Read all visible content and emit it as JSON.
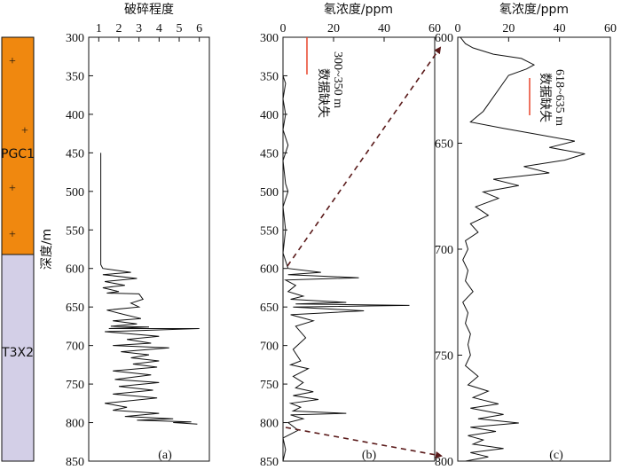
{
  "colors": {
    "granite": "#f0880f",
    "sediment": "#d3cfe7",
    "curve": "#111111",
    "gap_mark": "#e8442a",
    "arrow": "#5a1a1a"
  },
  "chart_data": [
    {
      "type": "column",
      "ylabel": "深度/m",
      "ylim": [
        300,
        850
      ],
      "units": [
        {
          "name": "PGC1",
          "top": 300,
          "bottom": 590,
          "color": "#f0880f",
          "symbol": "+",
          "symbol_depths": [
            330,
            420,
            495,
            555
          ]
        },
        {
          "name": "T3X2",
          "top": 590,
          "bottom": 850,
          "color": "#d3cfe7"
        }
      ]
    },
    {
      "type": "line",
      "panel": "(a)",
      "title": "破碎程度",
      "xlim": [
        0.5,
        6.5
      ],
      "ylim": [
        300,
        850
      ],
      "xticks": [
        1,
        2,
        3,
        4,
        5,
        6
      ],
      "yticks": [
        300,
        350,
        400,
        450,
        500,
        550,
        600,
        650,
        700,
        750,
        800,
        850
      ],
      "series": [
        {
          "name": "破碎程度",
          "x": [
            1.1,
            1.1,
            1.2,
            2.6,
            1.2,
            2.9,
            1.3,
            2.3,
            1.2,
            2.0,
            1.4,
            3.0,
            3.2,
            2.6,
            3.0,
            1.4,
            2.3,
            3.1,
            1.7,
            2.9,
            1.6,
            3.5,
            1.5,
            6.0,
            1.3,
            4.0,
            2.4,
            3.6,
            1.7,
            4.5,
            2.1,
            3.5,
            2.6,
            4.0,
            2.7,
            3.9,
            1.7,
            3.6,
            1.8,
            4.0,
            2.0,
            3.7,
            1.7,
            3.9,
            1.3,
            2.4,
            1.7,
            4.0,
            2.3,
            4.7,
            2.9,
            5.6,
            4.7,
            5.9
          ],
          "y": [
            450,
            595,
            600,
            605,
            608,
            613,
            617,
            622,
            625,
            630,
            632,
            633,
            640,
            645,
            650,
            654,
            660,
            665,
            668,
            672,
            675,
            676,
            678,
            678,
            682,
            688,
            692,
            697,
            700,
            703,
            708,
            712,
            716,
            720,
            724,
            728,
            733,
            738,
            744,
            748,
            753,
            758,
            763,
            768,
            775,
            780,
            784,
            788,
            792,
            795,
            797,
            799,
            800,
            802
          ]
        }
      ]
    },
    {
      "type": "line",
      "panel": "(b)",
      "title": "氡浓度/ppm",
      "xlim": [
        0,
        60
      ],
      "ylim": [
        300,
        850
      ],
      "xticks": [
        0,
        20,
        40,
        60
      ],
      "yticks": [
        300,
        350,
        400,
        450,
        500,
        550,
        600,
        650,
        700,
        750,
        800,
        850
      ],
      "annotations": [
        "数据缺失",
        "300~350 m"
      ],
      "series": [
        {
          "name": "氡浓度",
          "x": [
            0,
            1,
            0,
            1,
            0,
            2,
            0,
            1,
            2,
            0,
            1,
            0,
            2,
            15,
            2,
            30,
            1,
            5,
            2,
            8,
            3,
            25,
            5,
            50,
            4,
            32,
            3,
            12,
            5,
            9,
            4,
            7,
            3,
            10,
            4,
            8,
            5,
            12,
            4,
            14,
            3,
            7,
            4,
            25,
            3,
            8,
            2,
            6,
            0,
            1,
            0
          ],
          "y": [
            350,
            360,
            380,
            400,
            420,
            440,
            460,
            490,
            500,
            520,
            550,
            580,
            600,
            605,
            608,
            612,
            615,
            622,
            630,
            636,
            640,
            644,
            646,
            648,
            650,
            655,
            660,
            668,
            675,
            690,
            705,
            720,
            725,
            730,
            740,
            748,
            755,
            760,
            765,
            770,
            775,
            780,
            785,
            788,
            790,
            795,
            800,
            810,
            820,
            835,
            850
          ]
        }
      ]
    },
    {
      "type": "line",
      "panel": "(c)",
      "title": "氡浓度/ppm",
      "xlim": [
        0,
        60
      ],
      "ylim": [
        600,
        800
      ],
      "xticks": [
        0,
        20,
        40,
        60
      ],
      "yticks": [
        600,
        650,
        700,
        750,
        800
      ],
      "annotations": [
        "数据缺失",
        "618~635 m"
      ],
      "series": [
        {
          "name": "氡浓度",
          "x": [
            1,
            3,
            6,
            14,
            25,
            30,
            27,
            20,
            10,
            5,
            18,
            32,
            46,
            36,
            50,
            42,
            26,
            36,
            14,
            24,
            10,
            16,
            7,
            12,
            5,
            8,
            3,
            4,
            2,
            4,
            3,
            6,
            2,
            4,
            3,
            5,
            4,
            5,
            3,
            8,
            4,
            12,
            6,
            16,
            5,
            18,
            8,
            24,
            5,
            15,
            4,
            10,
            6,
            18,
            5,
            12,
            3
          ],
          "y": [
            600,
            603,
            605,
            608,
            610,
            613,
            615,
            618,
            635,
            640,
            643,
            646,
            649,
            652,
            655,
            658,
            661,
            664,
            667,
            670,
            673,
            676,
            680,
            684,
            688,
            692,
            696,
            700,
            705,
            710,
            715,
            720,
            725,
            730,
            735,
            740,
            745,
            750,
            755,
            760,
            764,
            767,
            770,
            773,
            775,
            778,
            780,
            782,
            784,
            786,
            788,
            790,
            792,
            794,
            796,
            798,
            800
          ]
        }
      ]
    }
  ]
}
